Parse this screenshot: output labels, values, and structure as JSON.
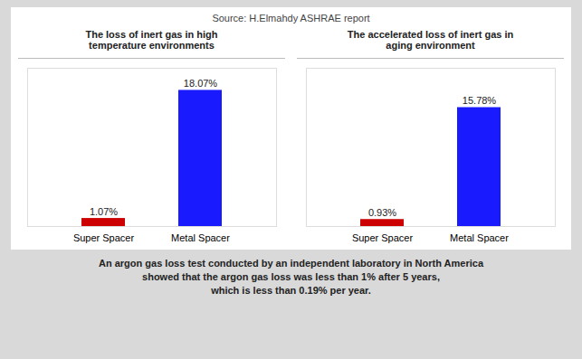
{
  "chart_data": [
    {
      "type": "bar",
      "title": "The loss of inert gas in high\ntemperature environments",
      "categories": [
        "Super Spacer",
        "Metal Spacer"
      ],
      "values": [
        1.07,
        18.07
      ],
      "value_labels": [
        "1.07%",
        "18.07%"
      ],
      "colors": [
        "#cc0000",
        "#1a1aff"
      ],
      "ylim": [
        0,
        21
      ],
      "data_labels": true,
      "tick_labels": "x",
      "annotations": [
        "Source: H.Elmahdy ASHRAE report",
        "An argon gas loss test conducted by an independent laboratory in North America",
        "showed that the argon gas loss was less than 1% after 5 years,",
        "which is less than 0.19% per year."
      ]
    },
    {
      "type": "bar",
      "title": "The accelerated loss of inert gas in\naging environment",
      "categories": [
        "Super Spacer",
        "Metal Spacer"
      ],
      "values": [
        0.93,
        15.78
      ],
      "value_labels": [
        "0.93%",
        "15.78%"
      ],
      "colors": [
        "#cc0000",
        "#1a1aff"
      ],
      "ylim": [
        0,
        21
      ],
      "data_labels": true,
      "tick_labels": "x"
    }
  ]
}
